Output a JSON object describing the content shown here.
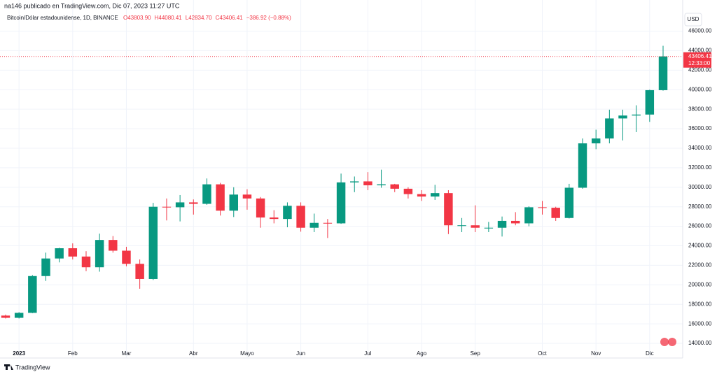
{
  "header": {
    "author_line": "na146 publicado en TradingView.com, Dic 07, 2023 11:27 UTC",
    "brand": "TradingView"
  },
  "chart_data": {
    "type": "candlestick",
    "symbol": "Bitcoin/Dólar estadounidense, 1D, BINANCE",
    "legend_values": [
      "O43803.90",
      "H44080.41",
      "L42834.70",
      "C43406.41",
      "−386.92 (−0.88%)"
    ],
    "currency": "USD",
    "countdown": "12:33:00",
    "up_color": "#089981",
    "down_color": "#f23645",
    "grid": true,
    "categories": [
      null,
      "2023",
      null,
      null,
      null,
      "Feb",
      null,
      null,
      null,
      "Mar",
      null,
      null,
      null,
      null,
      "Abr",
      null,
      null,
      null,
      "Mayo",
      null,
      null,
      null,
      "Jun",
      null,
      null,
      null,
      null,
      "Jul",
      null,
      null,
      null,
      "Ago",
      null,
      null,
      null,
      "Sep",
      null,
      null,
      null,
      null,
      "Oct",
      null,
      null,
      null,
      "Nov",
      null,
      null,
      null,
      "Dic",
      null
    ],
    "open": [
      16850,
      16620,
      17130,
      20900,
      22700,
      23750,
      22900,
      21800,
      24600,
      23500,
      22150,
      20600,
      28000,
      27950,
      28450,
      28300,
      30300,
      27600,
      29250,
      28850,
      26900,
      26750,
      28100,
      25850,
      26350,
      26300,
      30500,
      30600,
      30200,
      30300,
      29850,
      29300,
      29050,
      29400,
      26100,
      26100,
      25850,
      25850,
      26550,
      26300,
      27950,
      27900,
      26850,
      29950,
      34500,
      35000,
      37050,
      37350,
      37450,
      39950
    ],
    "high": [
      16950,
      17200,
      21000,
      23300,
      23800,
      24250,
      23450,
      25250,
      25000,
      23900,
      22600,
      28400,
      28850,
      29200,
      28750,
      30900,
      30450,
      30000,
      29800,
      29000,
      27650,
      28450,
      28450,
      27300,
      26750,
      31400,
      31100,
      31550,
      31800,
      30350,
      30000,
      29700,
      30250,
      29700,
      26850,
      28150,
      26450,
      27000,
      27450,
      28050,
      28600,
      28000,
      30350,
      35000,
      35900,
      37950,
      37950,
      38400,
      40000,
      44500
    ],
    "low": [
      16550,
      16550,
      17100,
      20400,
      22300,
      22600,
      21400,
      21350,
      23300,
      21900,
      19600,
      20500,
      26600,
      26500,
      27200,
      28200,
      27100,
      26950,
      27700,
      25850,
      26300,
      25900,
      25450,
      25400,
      24800,
      26250,
      29500,
      29700,
      29950,
      29500,
      28850,
      28600,
      28700,
      25200,
      25400,
      25400,
      25400,
      24950,
      26100,
      26000,
      27200,
      26550,
      26800,
      29850,
      33900,
      34500,
      34800,
      35650,
      36700,
      39900
    ],
    "close": [
      16620,
      17130,
      20900,
      22700,
      23750,
      22900,
      21800,
      24600,
      23500,
      22150,
      20600,
      28000,
      27950,
      28450,
      28300,
      30300,
      27600,
      29250,
      28850,
      26900,
      26750,
      28100,
      25850,
      26350,
      26300,
      30500,
      30600,
      30200,
      30300,
      29850,
      29300,
      29050,
      29400,
      26100,
      26100,
      25850,
      25850,
      26550,
      26300,
      27950,
      27900,
      26850,
      29950,
      34500,
      35000,
      37050,
      37350,
      37450,
      39950,
      43406.41
    ],
    "ylim": [
      12500,
      47900
    ],
    "yticks": [
      {
        "value": 14000,
        "label": "14000.00"
      },
      {
        "value": 16000,
        "label": "16000.00"
      },
      {
        "value": 18000,
        "label": "18000.00"
      },
      {
        "value": 20000,
        "label": "20000.00"
      },
      {
        "value": 22000,
        "label": "22000.00"
      },
      {
        "value": 24000,
        "label": "24000.00"
      },
      {
        "value": 26000,
        "label": "26000.00"
      },
      {
        "value": 28000,
        "label": "28000.00"
      },
      {
        "value": 30000,
        "label": "30000.00"
      },
      {
        "value": 32000,
        "label": "32000.00"
      },
      {
        "value": 34000,
        "label": "34000.00"
      },
      {
        "value": 36000,
        "label": "36000.00"
      },
      {
        "value": 38000,
        "label": "38000.00"
      },
      {
        "value": 40000,
        "label": "40000.00"
      },
      {
        "value": 42000,
        "label": "42000.00"
      },
      {
        "value": 44000,
        "label": "44000.00"
      },
      {
        "value": 46000,
        "label": "46000.00"
      }
    ]
  }
}
